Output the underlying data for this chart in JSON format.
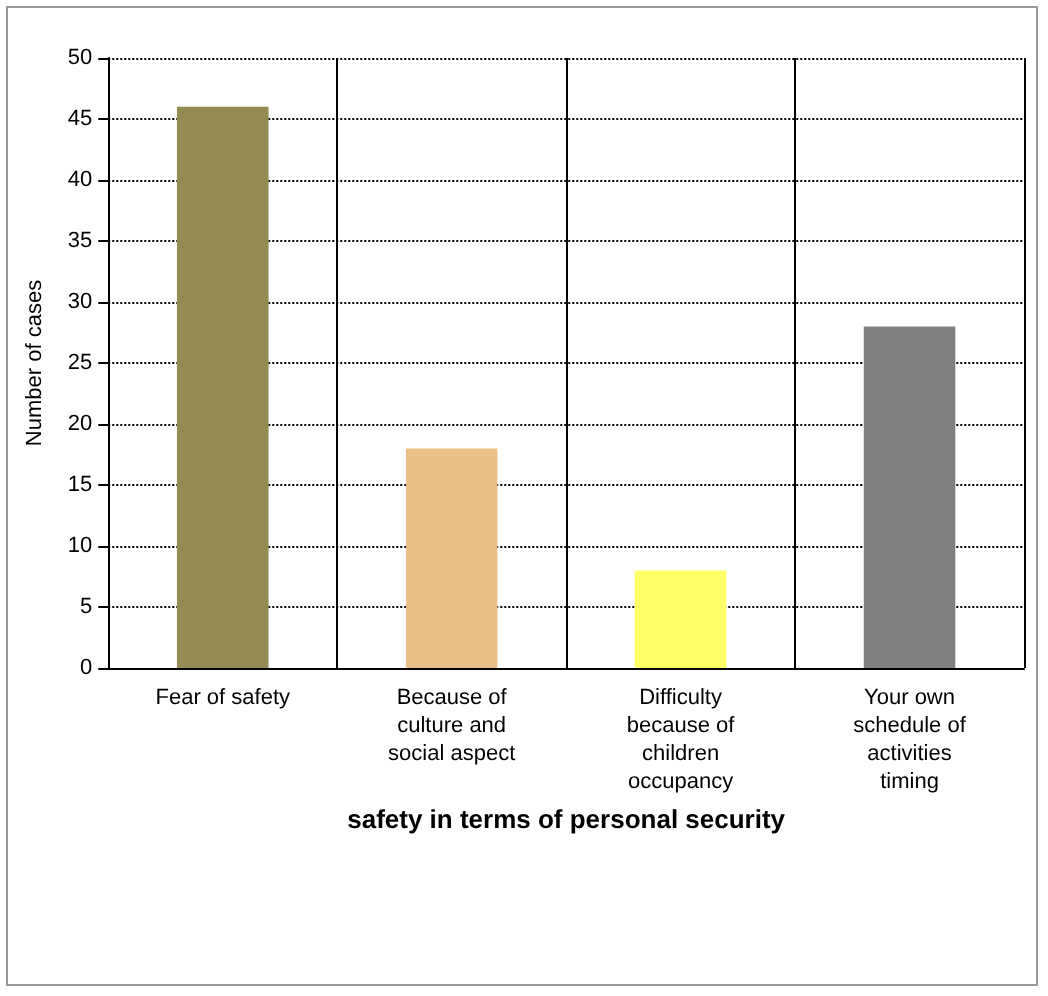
{
  "chart_data": {
    "type": "bar",
    "xlabel": "safety in terms of personal security",
    "ylabel": "Number of cases",
    "categories": [
      "Fear of safety",
      "Because of culture and social aspect",
      "Difficulty because of children occupancy",
      "Your own schedule of activities timing"
    ],
    "values": [
      46,
      18,
      8,
      28
    ],
    "colors": [
      "#948a54",
      "#ebc086",
      "#ffff66",
      "#808080"
    ],
    "ylim": [
      0,
      50
    ],
    "yticks": [
      0,
      5,
      10,
      15,
      20,
      25,
      30,
      35,
      40,
      45,
      50
    ],
    "grid": true
  }
}
